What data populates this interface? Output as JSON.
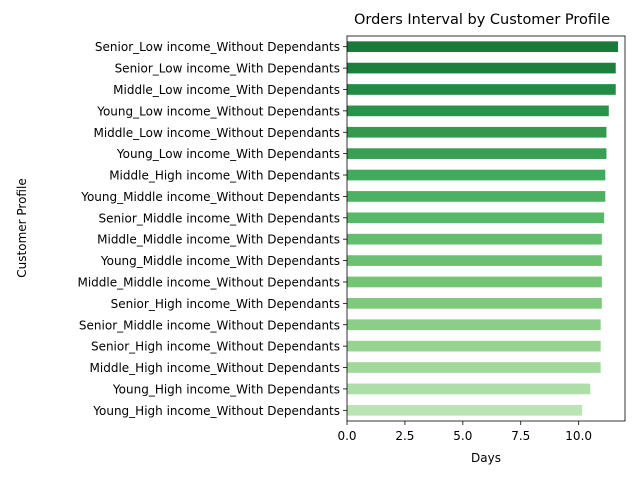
{
  "chart_data": {
    "type": "bar",
    "orientation": "horizontal",
    "title": "Orders Interval by Customer Profile",
    "xlabel": "Days",
    "ylabel": "Customer Profile",
    "xlim": [
      0,
      12.0
    ],
    "xticks": [
      0.0,
      2.5,
      5.0,
      7.5,
      10.0
    ],
    "xtick_labels": [
      "0.0",
      "2.5",
      "5.0",
      "7.5",
      "10.0"
    ],
    "grid": false,
    "legend": "none",
    "categories": [
      "Senior_Low income_Without Dependants",
      "Senior_Low income_With Dependants",
      "Middle_Low income_With Dependants",
      "Young_Low income_Without Dependants",
      "Middle_Low income_Without Dependants",
      "Young_Low income_With Dependants",
      "Middle_High income_With Dependants",
      "Young_Middle income_Without Dependants",
      "Senior_Middle income_With Dependants",
      "Middle_Middle income_With Dependants",
      "Young_Middle income_With Dependants",
      "Middle_Middle income_Without Dependants",
      "Senior_High income_With Dependants",
      "Senior_Middle income_Without Dependants",
      "Senior_High income_Without Dependants",
      "Middle_High income_Without Dependants",
      "Young_High income_With Dependants",
      "Young_High income_Without Dependants"
    ],
    "values": [
      11.7,
      11.6,
      11.6,
      11.3,
      11.2,
      11.2,
      11.15,
      11.15,
      11.1,
      11.0,
      11.0,
      11.0,
      11.0,
      10.95,
      10.95,
      10.95,
      10.5,
      10.15
    ],
    "colors": [
      "#1a7a3b",
      "#1c7f3d",
      "#238b45",
      "#2a934b",
      "#33994f",
      "#3a9f54",
      "#41ab5d",
      "#4cb262",
      "#57b868",
      "#63be6e",
      "#6bc072",
      "#74c476",
      "#7fc97f",
      "#8ace88",
      "#97d393",
      "#a1d99b",
      "#aedea7",
      "#bbe4b4"
    ]
  }
}
